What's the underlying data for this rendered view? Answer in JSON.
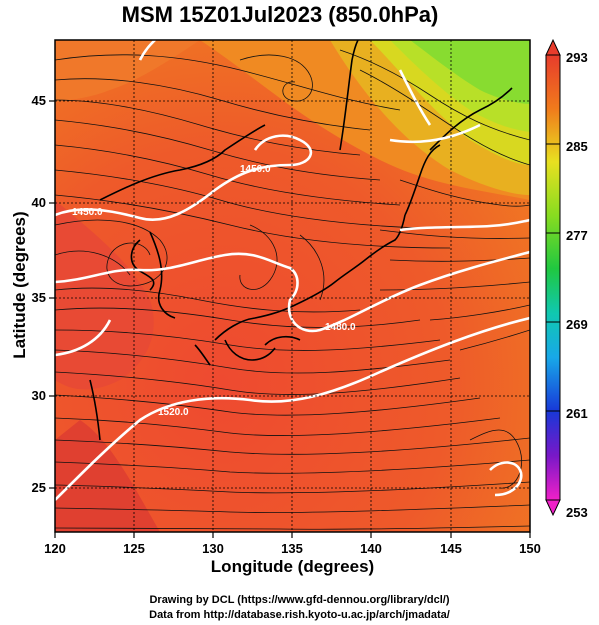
{
  "title": "MSM 15Z01Jul2023 (850.0hPa)",
  "xlabel": "Longitude (degrees)",
  "ylabel": "Latitude  (degrees)",
  "credits": [
    "Drawing by DCL (https://www.gfd-dennou.org/library/dcl/)",
    "Data from http://database.rish.kyoto-u.ac.jp/arch/jmadata/"
  ],
  "map": {
    "lon_range": [
      120,
      150
    ],
    "lat_range": [
      22.4,
      47.6
    ],
    "lon_ticks": [
      "120",
      "125",
      "130",
      "135",
      "140",
      "145",
      "150"
    ],
    "lat_ticks": [
      "25",
      "30",
      "35",
      "40",
      "45"
    ],
    "contour_labels": [
      "1450.0",
      "1450.0",
      "1480.0",
      "1520.0"
    ]
  },
  "colorbar": {
    "ticks": [
      "293",
      "285",
      "277",
      "269",
      "261",
      "253"
    ],
    "colors": {
      "293": "#e8402c",
      "289": "#f07a1c",
      "285": "#e8e020",
      "281": "#a8e020",
      "277": "#30d040",
      "273": "#10d0a0",
      "269": "#18b8e8",
      "265": "#1870e0",
      "261": "#2020c8",
      "257": "#9020c0",
      "253": "#f020c0"
    }
  }
}
